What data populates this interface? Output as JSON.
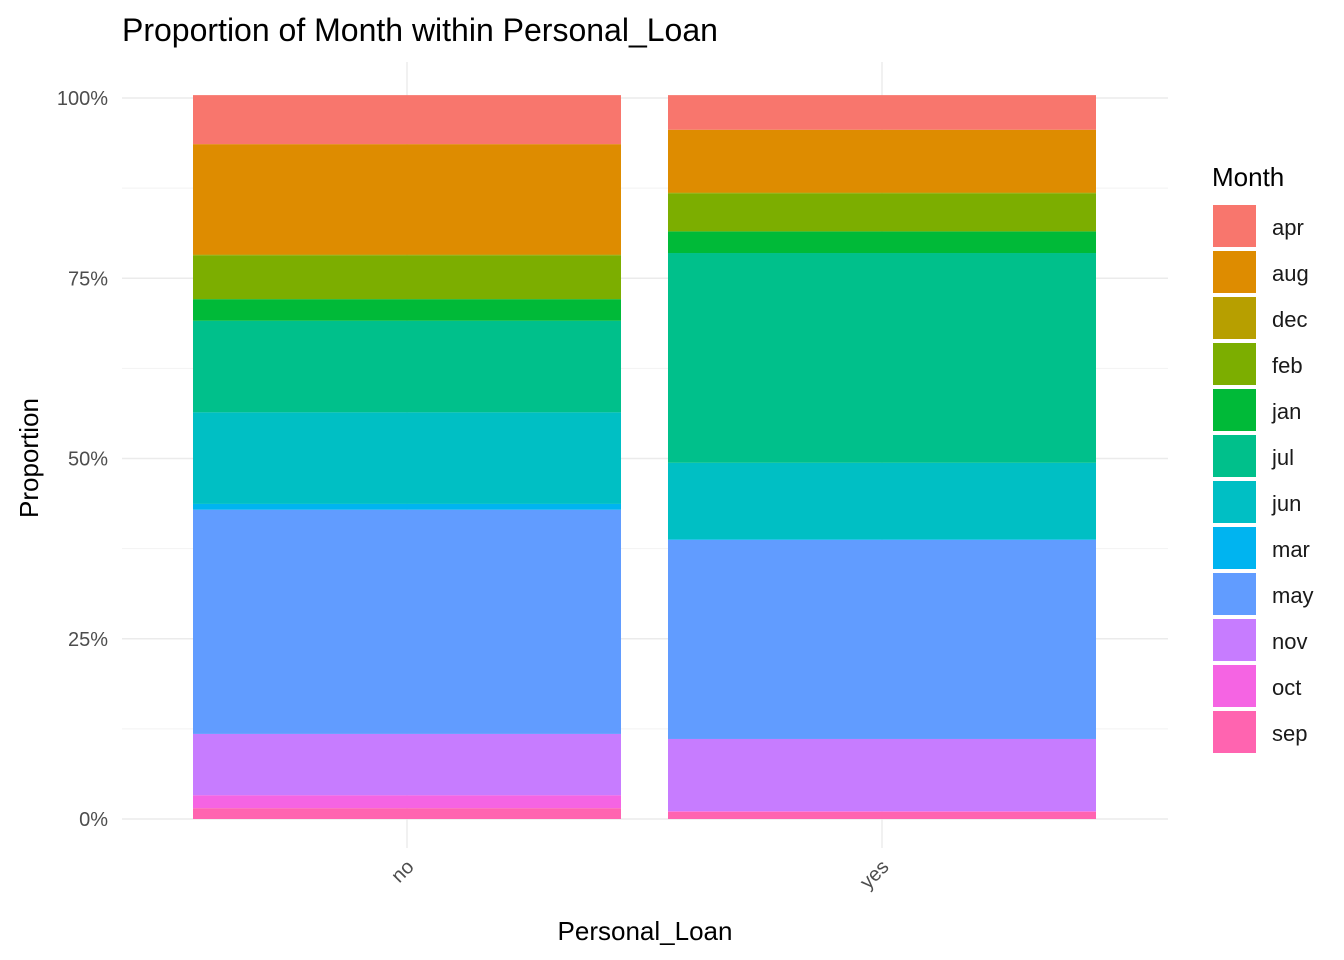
{
  "chart_data": {
    "type": "bar",
    "stacked": true,
    "normalized": true,
    "title": "Proportion of Month within Personal_Loan",
    "xlabel": "Personal_Loan",
    "ylabel": "Proportion",
    "categories": [
      "no",
      "yes"
    ],
    "ylim": [
      0,
      1
    ],
    "yticks": [
      0,
      0.25,
      0.5,
      0.75,
      1.0
    ],
    "ytick_labels": [
      "0%",
      "25%",
      "50%",
      "75%",
      "100%"
    ],
    "grid": true,
    "legend": {
      "title": "Month",
      "position": "right"
    },
    "series": [
      {
        "name": "apr",
        "color": "#F8766D",
        "values": [
          0.068,
          0.048
        ]
      },
      {
        "name": "aug",
        "color": "#DE8C00",
        "values": [
          0.153,
          0.087
        ]
      },
      {
        "name": "dec",
        "color": "#B79F00",
        "values": [
          0.001,
          0.001
        ]
      },
      {
        "name": "feb",
        "color": "#7CAE00",
        "values": [
          0.061,
          0.053
        ]
      },
      {
        "name": "jan",
        "color": "#00BA38",
        "values": [
          0.03,
          0.03
        ]
      },
      {
        "name": "jul",
        "color": "#00C08B",
        "values": [
          0.127,
          0.291
        ]
      },
      {
        "name": "jun",
        "color": "#00BFC4",
        "values": [
          0.127,
          0.106
        ]
      },
      {
        "name": "mar",
        "color": "#00B4F0",
        "values": [
          0.008,
          0.001
        ]
      },
      {
        "name": "may",
        "color": "#619CFF",
        "values": [
          0.311,
          0.276
        ]
      },
      {
        "name": "nov",
        "color": "#C77CFF",
        "values": [
          0.085,
          0.1
        ]
      },
      {
        "name": "oct",
        "color": "#F564E3",
        "values": [
          0.018,
          0.001
        ]
      },
      {
        "name": "sep",
        "color": "#FF64B0",
        "values": [
          0.015,
          0.01
        ]
      }
    ]
  }
}
